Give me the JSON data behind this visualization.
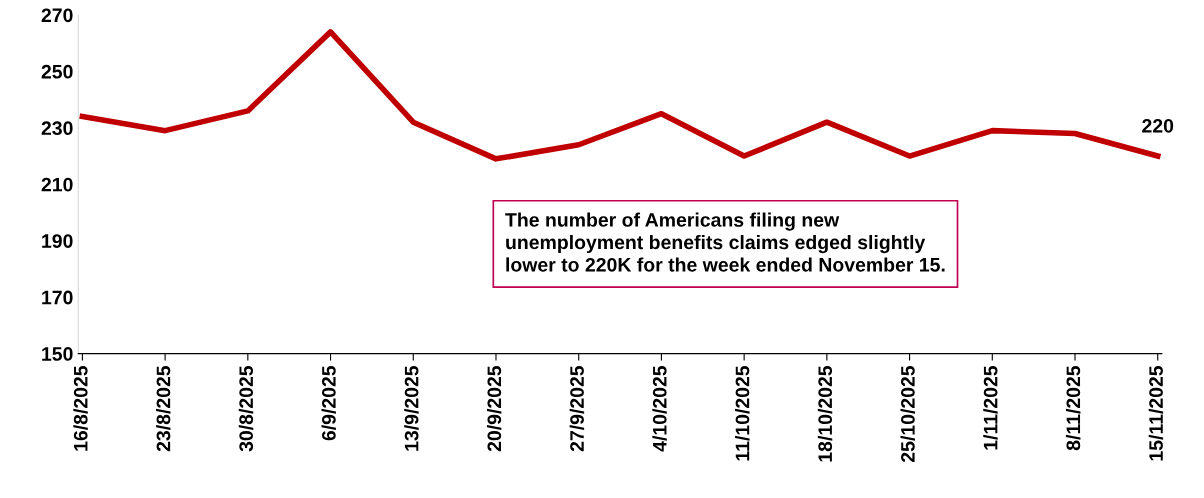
{
  "chart_data": {
    "type": "line",
    "categories": [
      "16/8/2025",
      "23/8/2025",
      "30/8/2025",
      "6/9/2025",
      "13/9/2025",
      "20/9/2025",
      "27/9/2025",
      "4/10/2025",
      "11/10/2025",
      "18/10/2025",
      "25/10/2025",
      "1/11/2025",
      "8/11/2025",
      "15/11/2025"
    ],
    "series": [
      {
        "color": "#c00000",
        "values": [
          234,
          229,
          236,
          264,
          232,
          219,
          224,
          235,
          220,
          232,
          220,
          229,
          228,
          220
        ],
        "value_labels": [
          null,
          null,
          null,
          null,
          null,
          null,
          null,
          null,
          null,
          null,
          null,
          null,
          null,
          "220"
        ]
      }
    ],
    "ylim": [
      150,
      270
    ],
    "yticks": [
      150,
      170,
      190,
      210,
      230,
      250,
      270
    ],
    "grid": false,
    "legend": false,
    "marker": "none",
    "line_style": "solid",
    "annotations": [
      "The number of Americans filing new\nunemployment benefits claims edged slightly\nlower to 220K for the week ended November 15."
    ]
  }
}
